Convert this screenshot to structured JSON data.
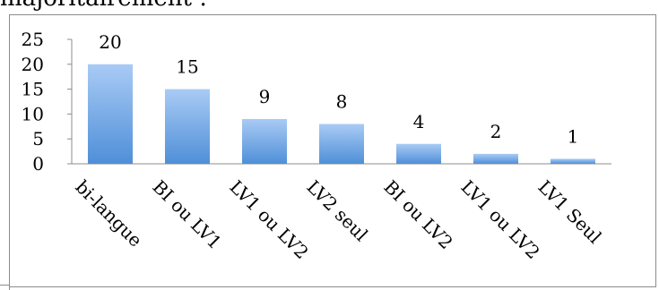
{
  "heading_text": "majoritairement :",
  "chart_data": {
    "type": "bar",
    "categories": [
      "bi-langue",
      "BI ou  LV1",
      "LV1 ou LV2",
      "LV2 seul",
      "BI ou LV2",
      "LV1 ou LV2",
      "LV1 Seul"
    ],
    "values": [
      20,
      15,
      9,
      8,
      4,
      2,
      1
    ],
    "ylim": [
      0,
      25
    ],
    "yticks": [
      0,
      5,
      10,
      15,
      20,
      25
    ],
    "grid": false,
    "legend": "none",
    "data_labels": true,
    "bar_color_top": "#a9cbf5",
    "bar_color_bottom": "#4f8fd8"
  }
}
